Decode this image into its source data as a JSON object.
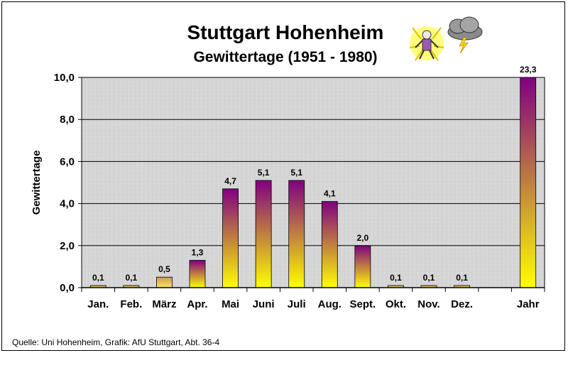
{
  "chart_data": {
    "type": "bar",
    "title": "Stuttgart Hohenheim",
    "subtitle": "Gewittertage (1951 - 1980)",
    "ylabel": "Gewittertage",
    "xlabel": "",
    "ylim": [
      0,
      10
    ],
    "yticks": [
      "0,0",
      "2,0",
      "4,0",
      "6,0",
      "8,0",
      "10,0"
    ],
    "grid": true,
    "categories": [
      "Jan.",
      "Feb.",
      "März",
      "Apr.",
      "Mai",
      "Juni",
      "Juli",
      "Aug.",
      "Sept.",
      "Okt.",
      "Nov.",
      "Dez.",
      "",
      "Jahr"
    ],
    "values": [
      0.1,
      0.1,
      0.5,
      1.3,
      4.7,
      5.1,
      5.1,
      4.1,
      2.0,
      0.1,
      0.1,
      0.1,
      null,
      23.3
    ],
    "data_labels": [
      "0,1",
      "0,1",
      "0,5",
      "1,3",
      "4,7",
      "5,1",
      "5,1",
      "4,1",
      "2,0",
      "0,1",
      "0,1",
      "0,1",
      "",
      "23,3"
    ],
    "colors": {
      "bar_top": "#800080",
      "bar_bottom": "#ffff00",
      "plot_bg": "#d4d4d4",
      "gridline": "#000000"
    }
  },
  "source": "Quelle: Uni Hohenheim, Grafik: AfU Stuttgart, Abt. 36-4",
  "icons": {
    "left": "lightning-struck-person-icon",
    "right": "thundercloud-icon"
  }
}
